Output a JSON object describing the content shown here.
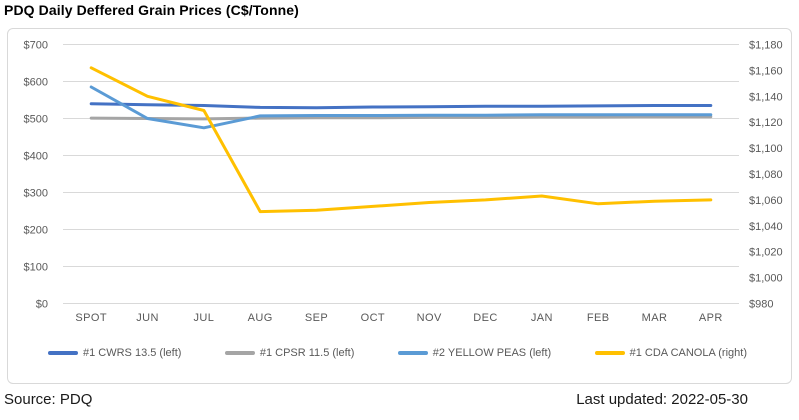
{
  "title": "PDQ Daily Deffered Grain Prices (C$/Tonne)",
  "footer": {
    "source": "Source: PDQ",
    "last_updated": "Last updated: 2022-05-30"
  },
  "colors": {
    "grid": "#D9D9D9",
    "chart_border": "#D9D9D9",
    "axis_text": "#595959",
    "title_text": "#000000",
    "footer_text": "#1a1a1a"
  },
  "chart_data": {
    "type": "line",
    "title": "PDQ Daily Deffered Grain Prices (C$/Tonne)",
    "grid": true,
    "legend_position": "bottom",
    "categories": [
      "SPOT",
      "JUN",
      "JUL",
      "AUG",
      "SEP",
      "OCT",
      "NOV",
      "DEC",
      "JAN",
      "FEB",
      "MAR",
      "APR"
    ],
    "left_axis": {
      "min": 0,
      "max": 700,
      "step": 100,
      "tick_labels": [
        "$0",
        "$100",
        "$200",
        "$300",
        "$400",
        "$500",
        "$600",
        "$700"
      ]
    },
    "right_axis": {
      "min": 980,
      "max": 1180,
      "step": 20,
      "tick_labels": [
        "$980",
        "$1,000",
        "$1,020",
        "$1,040",
        "$1,060",
        "$1,080",
        "$1,100",
        "$1,120",
        "$1,140",
        "$1,160",
        "$1,180"
      ]
    },
    "series": [
      {
        "name": "#1 CWRS 13.5 (left)",
        "axis": "left",
        "color": "#4472C4",
        "values": [
          540,
          537,
          535,
          530,
          529,
          531,
          532,
          533,
          533,
          534,
          535,
          535
        ]
      },
      {
        "name": "#1 CPSR 11.5 (left)",
        "axis": "left",
        "color": "#A5A5A5",
        "values": [
          501,
          500,
          499,
          501,
          502,
          502,
          503,
          503,
          504,
          504,
          505,
          505
        ]
      },
      {
        "name": "#2 YELLOW PEAS (left)",
        "axis": "left",
        "color": "#5B9BD5",
        "values": [
          585,
          500,
          475,
          507,
          508,
          508,
          509,
          509,
          510,
          510,
          510,
          510
        ]
      },
      {
        "name": "#1 CDA CANOLA (right)",
        "axis": "right",
        "color": "#FFC000",
        "values": [
          1162,
          1140,
          1129,
          1051,
          1052,
          1055,
          1058,
          1060,
          1063,
          1057,
          1059,
          1060
        ]
      }
    ]
  }
}
